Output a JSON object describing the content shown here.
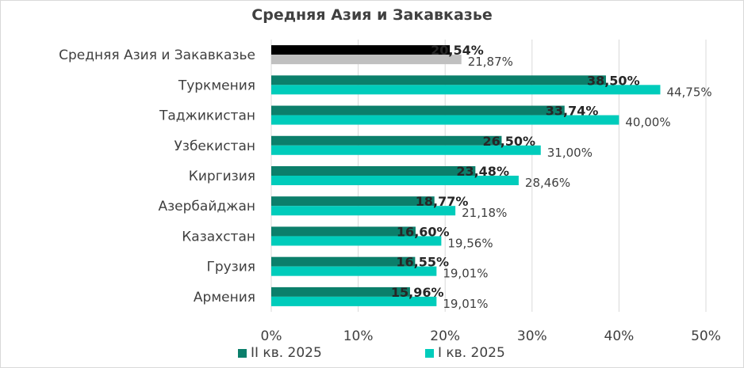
{
  "chart_data": {
    "type": "bar",
    "orientation": "horizontal",
    "title": "Средняя Азия и Закавказье",
    "categories": [
      "Средняя Азия и Закавказье",
      "Туркмения",
      "Таджикистан",
      "Узбекистан",
      "Киргизия",
      "Азербайджан",
      "Казахстан",
      "Грузия",
      "Армения"
    ],
    "series": [
      {
        "name": "II кв. 2025",
        "values": [
          20.54,
          38.5,
          33.74,
          26.5,
          23.48,
          18.77,
          16.6,
          16.55,
          15.96
        ],
        "labels": [
          "20,54%",
          "38,50%",
          "33,74%",
          "26,50%",
          "23,48%",
          "18,77%",
          "16,60%",
          "16,55%",
          "15,96%"
        ],
        "color": "#0b7f6b",
        "highlight_color": "#000000"
      },
      {
        "name": "I кв. 2025",
        "values": [
          21.87,
          44.75,
          40.0,
          31.0,
          28.46,
          21.18,
          19.56,
          19.01,
          19.01
        ],
        "labels": [
          "21,87%",
          "44,75%",
          "40,00%",
          "31,00%",
          "28,46%",
          "21,18%",
          "19,56%",
          "19,01%",
          "19,01%"
        ],
        "color": "#00ccbb",
        "highlight_color": "#c0c0c0"
      }
    ],
    "xlim": [
      0,
      50
    ],
    "xticks": [
      0,
      10,
      20,
      30,
      40,
      50
    ],
    "xtick_labels": [
      "0%",
      "10%",
      "20%",
      "30%",
      "40%",
      "50%"
    ],
    "grid": true,
    "legend_position": "bottom"
  }
}
